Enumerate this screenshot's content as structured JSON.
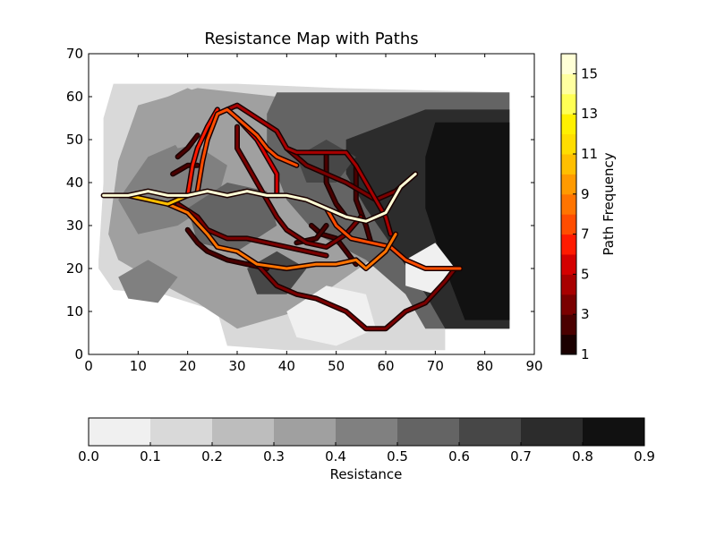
{
  "chart_data": {
    "type": "heatmap",
    "title": "Resistance Map with Paths",
    "xlabel": "",
    "ylabel": "",
    "xlim": [
      0,
      90
    ],
    "ylim": [
      0,
      70
    ],
    "x_ticks": [
      0,
      10,
      20,
      30,
      40,
      50,
      60,
      70,
      80,
      90
    ],
    "y_ticks": [
      0,
      10,
      20,
      30,
      40,
      50,
      60,
      70
    ],
    "grid": false,
    "resistance_colorbar": {
      "label": "Resistance",
      "orientation": "horizontal",
      "placement": "bottom",
      "levels": [
        0.0,
        0.1,
        0.2,
        0.3,
        0.4,
        0.5,
        0.6,
        0.7,
        0.8,
        0.9
      ],
      "tick_labels": [
        "0.0",
        "0.1",
        "0.2",
        "0.3",
        "0.4",
        "0.5",
        "0.6",
        "0.7",
        "0.8",
        "0.9"
      ],
      "colors": [
        "#f0f0f0",
        "#d9d9d9",
        "#bdbdbd",
        "#a0a0a0",
        "#808080",
        "#646464",
        "#474747",
        "#2c2c2c",
        "#111111"
      ]
    },
    "path_colorbar": {
      "label": "Path Frequency",
      "orientation": "vertical",
      "placement": "right",
      "levels": [
        1,
        2,
        3,
        4,
        5,
        6,
        7,
        8,
        9,
        10,
        11,
        12,
        13,
        14,
        15,
        16
      ],
      "tick_labels": [
        "1",
        "3",
        "5",
        "7",
        "9",
        "11",
        "13",
        "15"
      ],
      "tick_values": [
        1,
        3,
        5,
        7,
        9,
        11,
        13,
        15
      ],
      "colors": [
        "#1a0000",
        "#4a0000",
        "#7a0000",
        "#a80000",
        "#d40000",
        "#ff1a00",
        "#ff4d00",
        "#ff7400",
        "#ff9a00",
        "#ffbf00",
        "#ffdd00",
        "#fff000",
        "#ffff55",
        "#ffffa0",
        "#ffffd6"
      ]
    },
    "resistance_regions": [
      {
        "level": 0.15,
        "points": [
          [
            2,
            22
          ],
          [
            3,
            40
          ],
          [
            3,
            55
          ],
          [
            5,
            63
          ],
          [
            30,
            63
          ],
          [
            50,
            62
          ],
          [
            85,
            61
          ],
          [
            85,
            6
          ],
          [
            72,
            6
          ],
          [
            72,
            1
          ],
          [
            40,
            1
          ],
          [
            28,
            2
          ],
          [
            26,
            10
          ],
          [
            15,
            14
          ],
          [
            5,
            15
          ],
          [
            2,
            20
          ]
        ]
      },
      {
        "level": 0.3,
        "points": [
          [
            4,
            28
          ],
          [
            6,
            45
          ],
          [
            10,
            58
          ],
          [
            22,
            62
          ],
          [
            38,
            60
          ],
          [
            50,
            58
          ],
          [
            64,
            52
          ],
          [
            70,
            40
          ],
          [
            62,
            26
          ],
          [
            52,
            18
          ],
          [
            42,
            10
          ],
          [
            30,
            6
          ],
          [
            22,
            12
          ],
          [
            12,
            18
          ],
          [
            6,
            22
          ]
        ]
      },
      {
        "level": 0.55,
        "points": [
          [
            38,
            61
          ],
          [
            60,
            61
          ],
          [
            85,
            61
          ],
          [
            85,
            6
          ],
          [
            68,
            6
          ],
          [
            64,
            14
          ],
          [
            56,
            22
          ],
          [
            46,
            28
          ],
          [
            40,
            36
          ],
          [
            36,
            48
          ],
          [
            36,
            56
          ]
        ]
      },
      {
        "level": 0.75,
        "points": [
          [
            52,
            50
          ],
          [
            68,
            57
          ],
          [
            85,
            57
          ],
          [
            85,
            6
          ],
          [
            72,
            6
          ],
          [
            68,
            14
          ],
          [
            62,
            24
          ],
          [
            56,
            34
          ],
          [
            52,
            42
          ]
        ]
      },
      {
        "level": 0.85,
        "points": [
          [
            70,
            54
          ],
          [
            85,
            54
          ],
          [
            85,
            8
          ],
          [
            76,
            8
          ],
          [
            72,
            20
          ],
          [
            68,
            34
          ],
          [
            68,
            46
          ]
        ]
      },
      {
        "level": 0.45,
        "points": [
          [
            6,
            36
          ],
          [
            12,
            46
          ],
          [
            20,
            50
          ],
          [
            28,
            44
          ],
          [
            26,
            36
          ],
          [
            18,
            30
          ],
          [
            10,
            28
          ]
        ]
      },
      {
        "level": 0.35,
        "points": [
          [
            12,
            58
          ],
          [
            20,
            62
          ],
          [
            28,
            58
          ],
          [
            26,
            50
          ],
          [
            18,
            48
          ]
        ]
      },
      {
        "level": 0.5,
        "points": [
          [
            20,
            34
          ],
          [
            28,
            40
          ],
          [
            36,
            38
          ],
          [
            38,
            30
          ],
          [
            30,
            24
          ],
          [
            22,
            26
          ]
        ]
      },
      {
        "level": 0.05,
        "points": [
          [
            40,
            10
          ],
          [
            48,
            16
          ],
          [
            56,
            14
          ],
          [
            58,
            6
          ],
          [
            50,
            2
          ],
          [
            42,
            4
          ]
        ]
      },
      {
        "level": 0.05,
        "points": [
          [
            64,
            22
          ],
          [
            70,
            26
          ],
          [
            74,
            20
          ],
          [
            70,
            14
          ],
          [
            64,
            16
          ]
        ]
      },
      {
        "level": 0.4,
        "points": [
          [
            6,
            18
          ],
          [
            12,
            22
          ],
          [
            18,
            18
          ],
          [
            14,
            12
          ],
          [
            8,
            13
          ]
        ]
      },
      {
        "level": 0.65,
        "points": [
          [
            42,
            46
          ],
          [
            48,
            50
          ],
          [
            54,
            46
          ],
          [
            50,
            40
          ],
          [
            44,
            40
          ]
        ]
      },
      {
        "level": 0.6,
        "points": [
          [
            32,
            20
          ],
          [
            38,
            24
          ],
          [
            44,
            20
          ],
          [
            40,
            14
          ],
          [
            34,
            14
          ]
        ]
      }
    ],
    "paths": [
      {
        "frequency": 15,
        "points": [
          [
            3,
            37
          ],
          [
            8,
            37
          ],
          [
            12,
            38
          ],
          [
            16,
            37
          ],
          [
            20,
            37
          ],
          [
            24,
            38
          ],
          [
            28,
            37
          ],
          [
            32,
            38
          ],
          [
            36,
            37
          ],
          [
            40,
            37
          ],
          [
            44,
            36
          ],
          [
            48,
            34
          ],
          [
            52,
            32
          ],
          [
            56,
            31
          ],
          [
            60,
            33
          ],
          [
            63,
            39
          ],
          [
            66,
            42
          ]
        ]
      },
      {
        "frequency": 10,
        "points": [
          [
            8,
            37
          ],
          [
            12,
            36
          ],
          [
            16,
            35
          ],
          [
            20,
            37
          ]
        ]
      },
      {
        "frequency": 7,
        "points": [
          [
            48,
            34
          ],
          [
            50,
            30
          ],
          [
            53,
            27
          ],
          [
            57,
            26
          ],
          [
            61,
            25
          ],
          [
            64,
            22
          ],
          [
            68,
            20
          ],
          [
            72,
            20
          ],
          [
            75,
            20
          ]
        ]
      },
      {
        "frequency": 8,
        "points": [
          [
            16,
            35
          ],
          [
            20,
            33
          ],
          [
            24,
            28
          ],
          [
            26,
            25
          ],
          [
            30,
            24
          ],
          [
            34,
            21
          ],
          [
            40,
            20
          ],
          [
            46,
            21
          ],
          [
            50,
            21
          ],
          [
            54,
            22
          ],
          [
            56,
            20
          ],
          [
            60,
            24
          ],
          [
            62,
            28
          ]
        ]
      },
      {
        "frequency": 7,
        "points": [
          [
            22,
            38
          ],
          [
            23,
            45
          ],
          [
            24,
            50
          ],
          [
            26,
            56
          ],
          [
            28,
            57
          ],
          [
            30,
            55
          ],
          [
            34,
            51
          ],
          [
            36,
            48
          ],
          [
            38,
            46
          ],
          [
            42,
            44
          ]
        ]
      },
      {
        "frequency": 6,
        "points": [
          [
            20,
            37
          ],
          [
            21,
            44
          ],
          [
            22,
            48
          ],
          [
            24,
            53
          ],
          [
            26,
            57
          ]
        ]
      },
      {
        "frequency": 5,
        "points": [
          [
            30,
            55
          ],
          [
            34,
            50
          ],
          [
            36,
            46
          ],
          [
            38,
            42
          ],
          [
            38,
            37
          ]
        ]
      },
      {
        "frequency": 4,
        "points": [
          [
            28,
            57
          ],
          [
            30,
            58
          ],
          [
            34,
            55
          ],
          [
            38,
            52
          ],
          [
            40,
            48
          ],
          [
            42,
            47
          ],
          [
            48,
            47
          ],
          [
            52,
            47
          ],
          [
            54,
            44
          ],
          [
            56,
            40
          ],
          [
            58,
            36
          ],
          [
            60,
            32
          ],
          [
            61,
            28
          ]
        ]
      },
      {
        "frequency": 3,
        "points": [
          [
            30,
            53
          ],
          [
            30,
            48
          ],
          [
            32,
            44
          ],
          [
            34,
            40
          ],
          [
            36,
            36
          ],
          [
            38,
            32
          ],
          [
            40,
            29
          ],
          [
            44,
            26
          ],
          [
            48,
            25
          ],
          [
            52,
            28
          ],
          [
            55,
            32
          ]
        ]
      },
      {
        "frequency": 3,
        "points": [
          [
            40,
            48
          ],
          [
            42,
            46
          ],
          [
            44,
            44
          ],
          [
            48,
            42
          ],
          [
            52,
            40
          ],
          [
            55,
            38
          ],
          [
            58,
            36
          ]
        ]
      },
      {
        "frequency": 2,
        "points": [
          [
            18,
            46
          ],
          [
            20,
            48
          ],
          [
            22,
            51
          ]
        ]
      },
      {
        "frequency": 2,
        "points": [
          [
            17,
            42
          ],
          [
            20,
            44
          ],
          [
            22,
            44
          ]
        ]
      },
      {
        "frequency": 3,
        "points": [
          [
            18,
            35
          ],
          [
            22,
            32
          ],
          [
            24,
            29
          ],
          [
            28,
            27
          ],
          [
            32,
            27
          ],
          [
            36,
            26
          ],
          [
            40,
            25
          ],
          [
            44,
            24
          ],
          [
            48,
            23
          ]
        ]
      },
      {
        "frequency": 2,
        "points": [
          [
            20,
            29
          ],
          [
            22,
            26
          ],
          [
            24,
            24
          ],
          [
            28,
            22
          ],
          [
            32,
            21
          ],
          [
            36,
            20
          ]
        ]
      },
      {
        "frequency": 3,
        "points": [
          [
            34,
            21
          ],
          [
            38,
            16
          ],
          [
            42,
            14
          ],
          [
            46,
            13
          ],
          [
            50,
            11
          ],
          [
            52,
            10
          ],
          [
            54,
            8
          ],
          [
            56,
            6
          ],
          [
            60,
            6
          ],
          [
            62,
            8
          ],
          [
            64,
            10
          ],
          [
            68,
            12
          ],
          [
            72,
            17
          ],
          [
            74,
            20
          ]
        ]
      },
      {
        "frequency": 2,
        "points": [
          [
            48,
            47
          ],
          [
            48,
            40
          ],
          [
            50,
            35
          ],
          [
            52,
            32
          ]
        ]
      },
      {
        "frequency": 2,
        "points": [
          [
            54,
            44
          ],
          [
            54,
            36
          ],
          [
            56,
            30
          ],
          [
            57,
            26
          ]
        ]
      },
      {
        "frequency": 3,
        "points": [
          [
            58,
            36
          ],
          [
            62,
            38
          ],
          [
            64,
            40
          ],
          [
            66,
            42
          ]
        ]
      },
      {
        "frequency": 2,
        "points": [
          [
            45,
            30
          ],
          [
            47,
            28
          ],
          [
            50,
            27
          ],
          [
            52,
            24
          ],
          [
            54,
            21
          ]
        ]
      },
      {
        "frequency": 2,
        "points": [
          [
            42,
            26
          ],
          [
            46,
            27
          ],
          [
            48,
            30
          ]
        ]
      }
    ]
  }
}
